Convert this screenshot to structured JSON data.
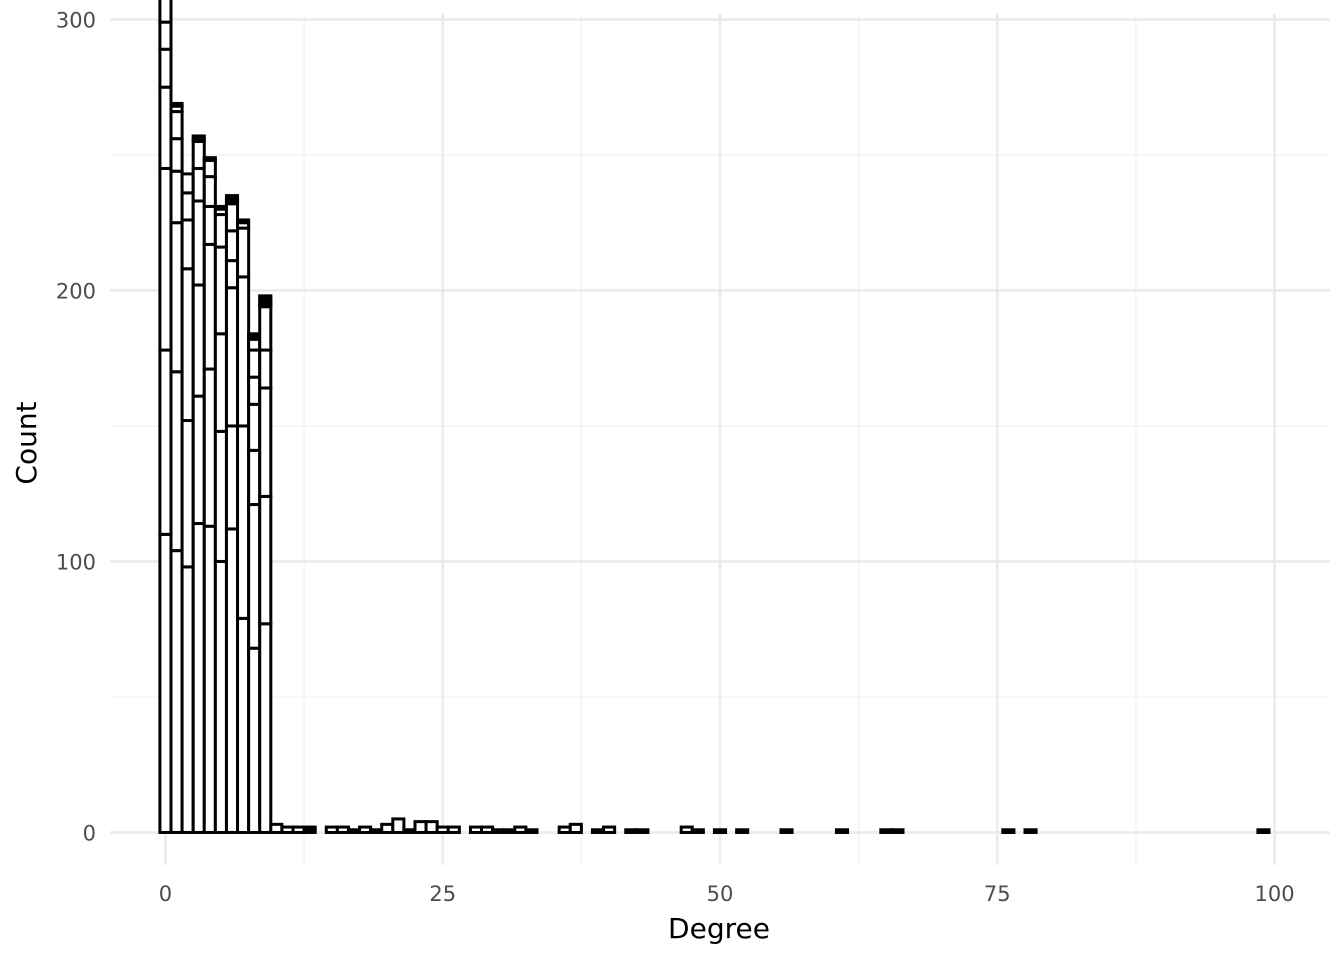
{
  "chart_data": {
    "type": "bar",
    "subtype": "stacked-histogram",
    "title": "",
    "xlabel": "Degree",
    "ylabel": "Count",
    "xlim": [
      -5,
      105
    ],
    "ylim": [
      -12,
      302
    ],
    "x_ticks": [
      0,
      25,
      50,
      75,
      100
    ],
    "x_tick_labels": [
      "0",
      "25",
      "50",
      "75",
      "100"
    ],
    "y_ticks": [
      0,
      100,
      200,
      300
    ],
    "y_tick_labels": [
      "0",
      "100",
      "200",
      "300"
    ],
    "grid": true,
    "bin_width": 1,
    "fill_color": "#ffffff",
    "outline_color": "#000000",
    "legend": "none",
    "bins": [
      {
        "x": 0,
        "segments": [
          110,
          68,
          67,
          30,
          14,
          10,
          9,
          1,
          2,
          2
        ]
      },
      {
        "x": 1,
        "segments": [
          104,
          66,
          55,
          19,
          12,
          10,
          2,
          1
        ]
      },
      {
        "x": 2,
        "segments": [
          98,
          54,
          56,
          18,
          10,
          7
        ]
      },
      {
        "x": 3,
        "segments": [
          114,
          47,
          41,
          31,
          12,
          10,
          1,
          1
        ]
      },
      {
        "x": 4,
        "segments": [
          113,
          58,
          46,
          14,
          11,
          6,
          1
        ]
      },
      {
        "x": 5,
        "segments": [
          100,
          48,
          36,
          32,
          12,
          2,
          1
        ]
      },
      {
        "x": 6,
        "segments": [
          112,
          38,
          51,
          10,
          11,
          10,
          1,
          1,
          1
        ]
      },
      {
        "x": 7,
        "segments": [
          79,
          71,
          55,
          18,
          2,
          1
        ]
      },
      {
        "x": 8,
        "segments": [
          68,
          53,
          20,
          17,
          10,
          10,
          4,
          1,
          1
        ]
      },
      {
        "x": 9,
        "segments": [
          77,
          47,
          40,
          14,
          16,
          1,
          1,
          1,
          1
        ]
      },
      {
        "x": 10,
        "segments": [
          3
        ]
      },
      {
        "x": 11,
        "segments": [
          2
        ]
      },
      {
        "x": 12,
        "segments": [
          2
        ]
      },
      {
        "x": 13,
        "segments": [
          1,
          1
        ]
      },
      {
        "x": 15,
        "segments": [
          2
        ]
      },
      {
        "x": 16,
        "segments": [
          2
        ]
      },
      {
        "x": 17,
        "segments": [
          1
        ]
      },
      {
        "x": 18,
        "segments": [
          2
        ]
      },
      {
        "x": 19,
        "segments": [
          1
        ]
      },
      {
        "x": 20,
        "segments": [
          3
        ]
      },
      {
        "x": 21,
        "segments": [
          5
        ]
      },
      {
        "x": 22,
        "segments": [
          1
        ]
      },
      {
        "x": 23,
        "segments": [
          4
        ]
      },
      {
        "x": 24,
        "segments": [
          4
        ]
      },
      {
        "x": 25,
        "segments": [
          2
        ]
      },
      {
        "x": 26,
        "segments": [
          2
        ]
      },
      {
        "x": 28,
        "segments": [
          2
        ]
      },
      {
        "x": 29,
        "segments": [
          2
        ]
      },
      {
        "x": 30,
        "segments": [
          1
        ]
      },
      {
        "x": 31,
        "segments": [
          1
        ]
      },
      {
        "x": 32,
        "segments": [
          2
        ]
      },
      {
        "x": 33,
        "segments": [
          1
        ]
      },
      {
        "x": 36,
        "segments": [
          2
        ]
      },
      {
        "x": 37,
        "segments": [
          3
        ]
      },
      {
        "x": 39,
        "segments": [
          1
        ]
      },
      {
        "x": 40,
        "segments": [
          2
        ]
      },
      {
        "x": 42,
        "segments": [
          1
        ]
      },
      {
        "x": 43,
        "segments": [
          1
        ]
      },
      {
        "x": 47,
        "segments": [
          2
        ]
      },
      {
        "x": 48,
        "segments": [
          1
        ]
      },
      {
        "x": 50,
        "segments": [
          1
        ]
      },
      {
        "x": 52,
        "segments": [
          1
        ]
      },
      {
        "x": 56,
        "segments": [
          1
        ]
      },
      {
        "x": 61,
        "segments": [
          1
        ]
      },
      {
        "x": 65,
        "segments": [
          1
        ]
      },
      {
        "x": 66,
        "segments": [
          1
        ]
      },
      {
        "x": 76,
        "segments": [
          1
        ]
      },
      {
        "x": 78,
        "segments": [
          1
        ]
      },
      {
        "x": 99,
        "segments": [
          1
        ]
      }
    ]
  }
}
